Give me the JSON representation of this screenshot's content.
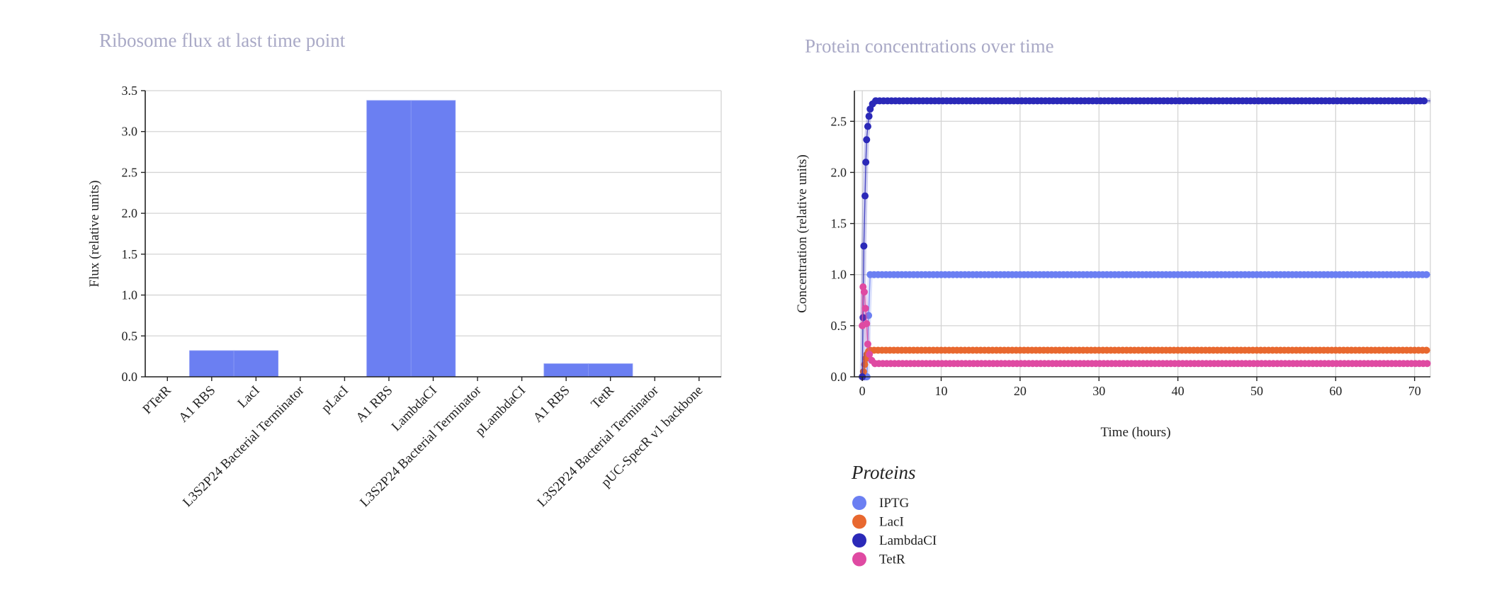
{
  "colors": {
    "IPTG": "#6b7ff2",
    "LacI": "#e8682f",
    "LambdaCI": "#2b29b8",
    "TetR": "#df4aa2",
    "bar": "#6b7ff2",
    "title": "#a9a9c6"
  },
  "chart_data": [
    {
      "type": "bar",
      "title": "Ribosome flux at last time point",
      "xlabel": "",
      "ylabel": "Flux (relative units)",
      "ylim": [
        0,
        3.5
      ],
      "yticks": [
        "0.0",
        "0.5",
        "1.0",
        "1.5",
        "2.0",
        "2.5",
        "3.0",
        "3.5"
      ],
      "grid": true,
      "categories": [
        "PTetR",
        "A1 RBS",
        "LacI",
        "L3S2P24 Bacterial Terminator",
        "pLacI",
        "A1 RBS",
        "LambdaCI",
        "L3S2P24 Bacterial Terminator",
        "pLambdaCI",
        "A1 RBS",
        "TetR",
        "L3S2P24 Bacterial Terminator",
        "pUC-SpecR v1 backbone"
      ],
      "values": [
        0,
        0.32,
        0.32,
        0,
        0,
        3.38,
        3.38,
        0,
        0,
        0.16,
        0.16,
        0,
        0
      ]
    },
    {
      "type": "scatter",
      "title": "Protein concentrations over time",
      "xlabel": "Time (hours)",
      "ylabel": "Concentration (relative units)",
      "xlim": [
        -1,
        72
      ],
      "ylim": [
        0,
        2.8
      ],
      "xticks": [
        "0",
        "10",
        "20",
        "30",
        "40",
        "50",
        "60",
        "70"
      ],
      "yticks": [
        "0.0",
        "0.5",
        "1.0",
        "1.5",
        "2.0",
        "2.5"
      ],
      "grid": true,
      "legend_title": "Proteins",
      "legend_position": "bottom-left",
      "series": [
        {
          "name": "IPTG",
          "points": [
            [
              0,
              0.0
            ],
            [
              0.15,
              0.0
            ],
            [
              0.3,
              0.0
            ],
            [
              0.45,
              0.0
            ],
            [
              0.6,
              0.0
            ],
            [
              0.8,
              0.6
            ],
            [
              1.0,
              1.0
            ],
            [
              72,
              1.0
            ]
          ],
          "steady": 1.0
        },
        {
          "name": "LacI",
          "points": [
            [
              0,
              0.0
            ],
            [
              0.15,
              0.05
            ],
            [
              0.3,
              0.12
            ],
            [
              0.45,
              0.18
            ],
            [
              0.6,
              0.22
            ],
            [
              0.8,
              0.25
            ],
            [
              1.0,
              0.26
            ],
            [
              72,
              0.26
            ]
          ],
          "steady": 0.26
        },
        {
          "name": "LambdaCI",
          "points": [
            [
              0,
              0.0
            ],
            [
              0.1,
              0.58
            ],
            [
              0.2,
              1.28
            ],
            [
              0.35,
              1.77
            ],
            [
              0.45,
              2.1
            ],
            [
              0.55,
              2.32
            ],
            [
              0.7,
              2.45
            ],
            [
              0.85,
              2.55
            ],
            [
              1.0,
              2.62
            ],
            [
              1.3,
              2.67
            ],
            [
              1.7,
              2.7
            ],
            [
              72,
              2.7
            ]
          ],
          "steady": 2.7
        },
        {
          "name": "TetR",
          "points": [
            [
              0,
              0.5
            ],
            [
              0.1,
              0.88
            ],
            [
              0.25,
              0.83
            ],
            [
              0.4,
              0.67
            ],
            [
              0.55,
              0.52
            ],
            [
              0.7,
              0.32
            ],
            [
              0.9,
              0.22
            ],
            [
              1.2,
              0.16
            ],
            [
              1.6,
              0.13
            ],
            [
              72,
              0.13
            ]
          ],
          "steady": 0.13
        }
      ]
    }
  ]
}
